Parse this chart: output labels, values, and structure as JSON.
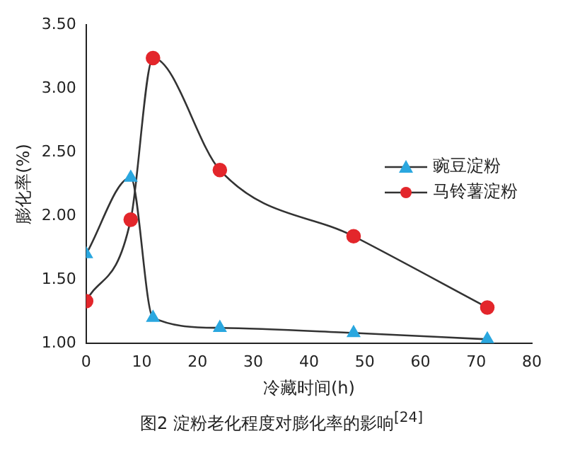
{
  "chart_data": {
    "type": "line",
    "title": "图2 淀粉老化程度对膨化率的影响$^{[24]}$",
    "xlabel": "冷藏时间(h)",
    "ylabel": "膨化率(%)",
    "xlim": [
      0,
      80
    ],
    "xticks": [
      0,
      10,
      20,
      30,
      40,
      50,
      60,
      70,
      80
    ],
    "ylim": [
      1,
      3.5
    ],
    "yticks": [
      {
        "value": 1,
        "label": "1.00"
      },
      {
        "value": 1.5,
        "label": "1.50"
      },
      {
        "value": 2,
        "label": "2.00"
      },
      {
        "value": 2.5,
        "label": "2.50"
      },
      {
        "value": 3,
        "label": "3.00"
      },
      {
        "value": 3.5,
        "label": "3.50"
      }
    ],
    "grid": false,
    "legend": "right",
    "series": [
      {
        "name": "豌豆淀粉",
        "color": "#2aa7df",
        "marker": "triangle",
        "x": [
          0,
          8,
          12,
          24,
          48,
          72
        ],
        "values": [
          1.7,
          2.3,
          1.2,
          1.12,
          1.08,
          1.03
        ]
      },
      {
        "name": "马铃薯淀粉",
        "color": "#e3262b",
        "marker": "circle",
        "x": [
          0,
          8,
          12,
          24,
          48,
          72
        ],
        "values": [
          1.33,
          1.97,
          3.24,
          2.36,
          1.84,
          1.28
        ]
      }
    ]
  }
}
